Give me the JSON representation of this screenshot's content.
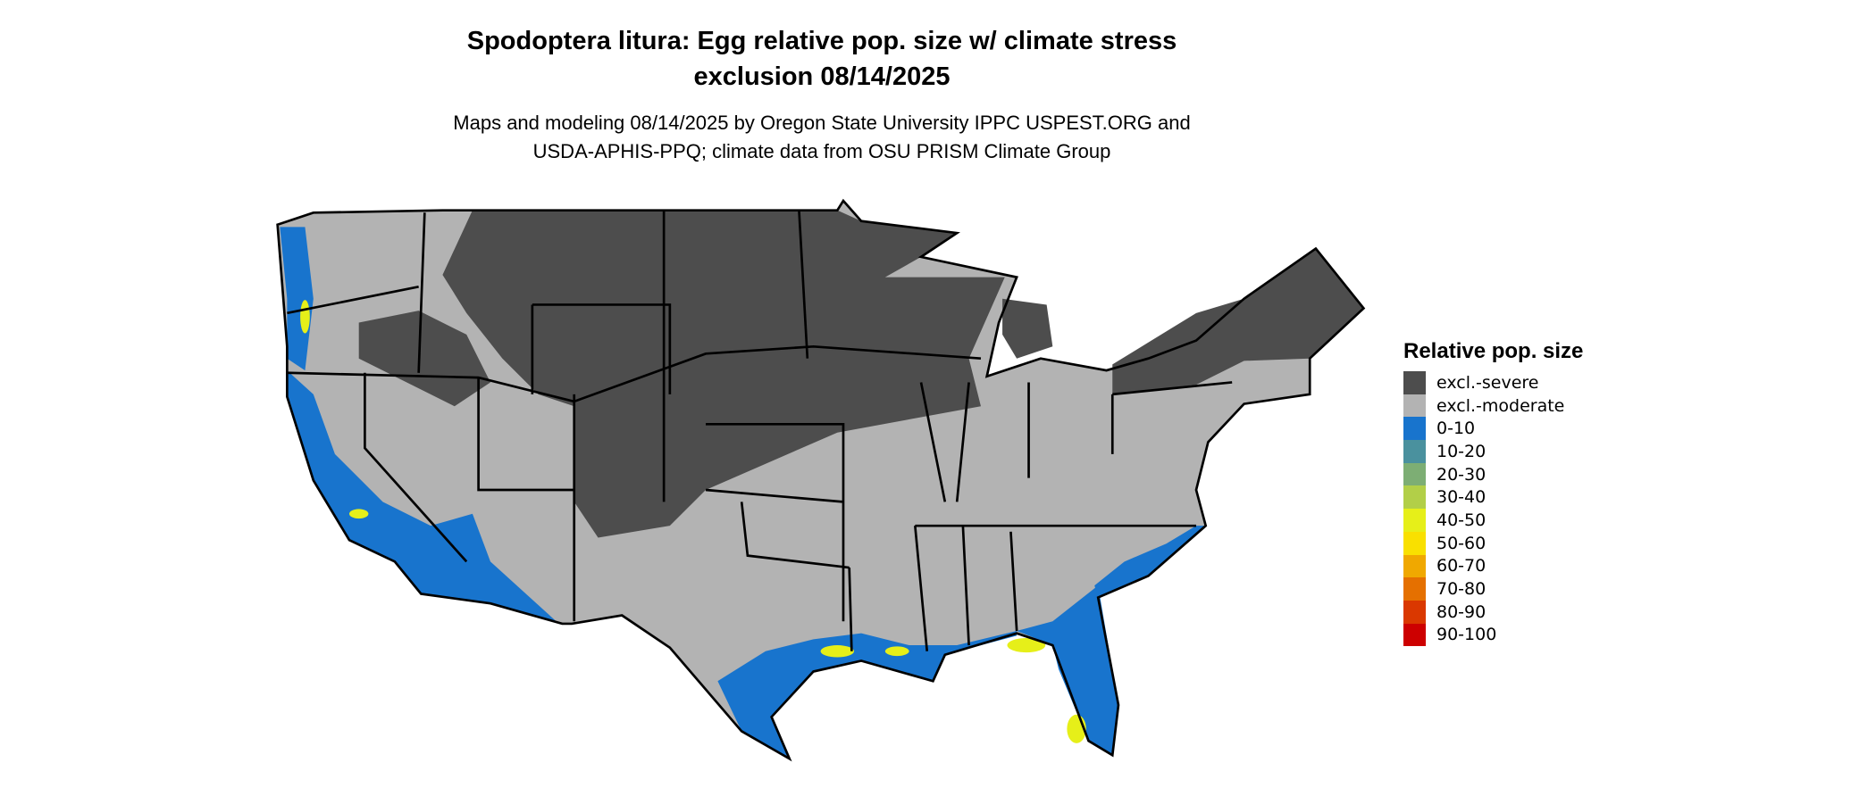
{
  "title": {
    "line1": "Spodoptera litura: Egg relative pop. size w/ climate stress",
    "line2": "exclusion 08/14/2025"
  },
  "subtitle": {
    "line1": "Maps and modeling 08/14/2025 by Oregon State University IPPC USPEST.ORG and",
    "line2": "USDA-APHIS-PPQ; climate data from OSU PRISM Climate Group"
  },
  "map": {
    "region": "Contiguous United States",
    "state_border_color": "#000000"
  },
  "legend": {
    "title": "Relative pop. size",
    "items": [
      {
        "label": "excl.-severe",
        "color": "#4d4d4d"
      },
      {
        "label": "excl.-moderate",
        "color": "#b3b3b3"
      },
      {
        "label": "0-10",
        "color": "#1874cd"
      },
      {
        "label": "10-20",
        "color": "#4a919e"
      },
      {
        "label": "20-30",
        "color": "#7dae74"
      },
      {
        "label": "30-40",
        "color": "#b2cf48"
      },
      {
        "label": "40-50",
        "color": "#e6ef19"
      },
      {
        "label": "50-60",
        "color": "#f9e000"
      },
      {
        "label": "60-70",
        "color": "#f0a800"
      },
      {
        "label": "70-80",
        "color": "#e57000"
      },
      {
        "label": "80-90",
        "color": "#da3800"
      },
      {
        "label": "90-100",
        "color": "#cd0000"
      }
    ]
  }
}
